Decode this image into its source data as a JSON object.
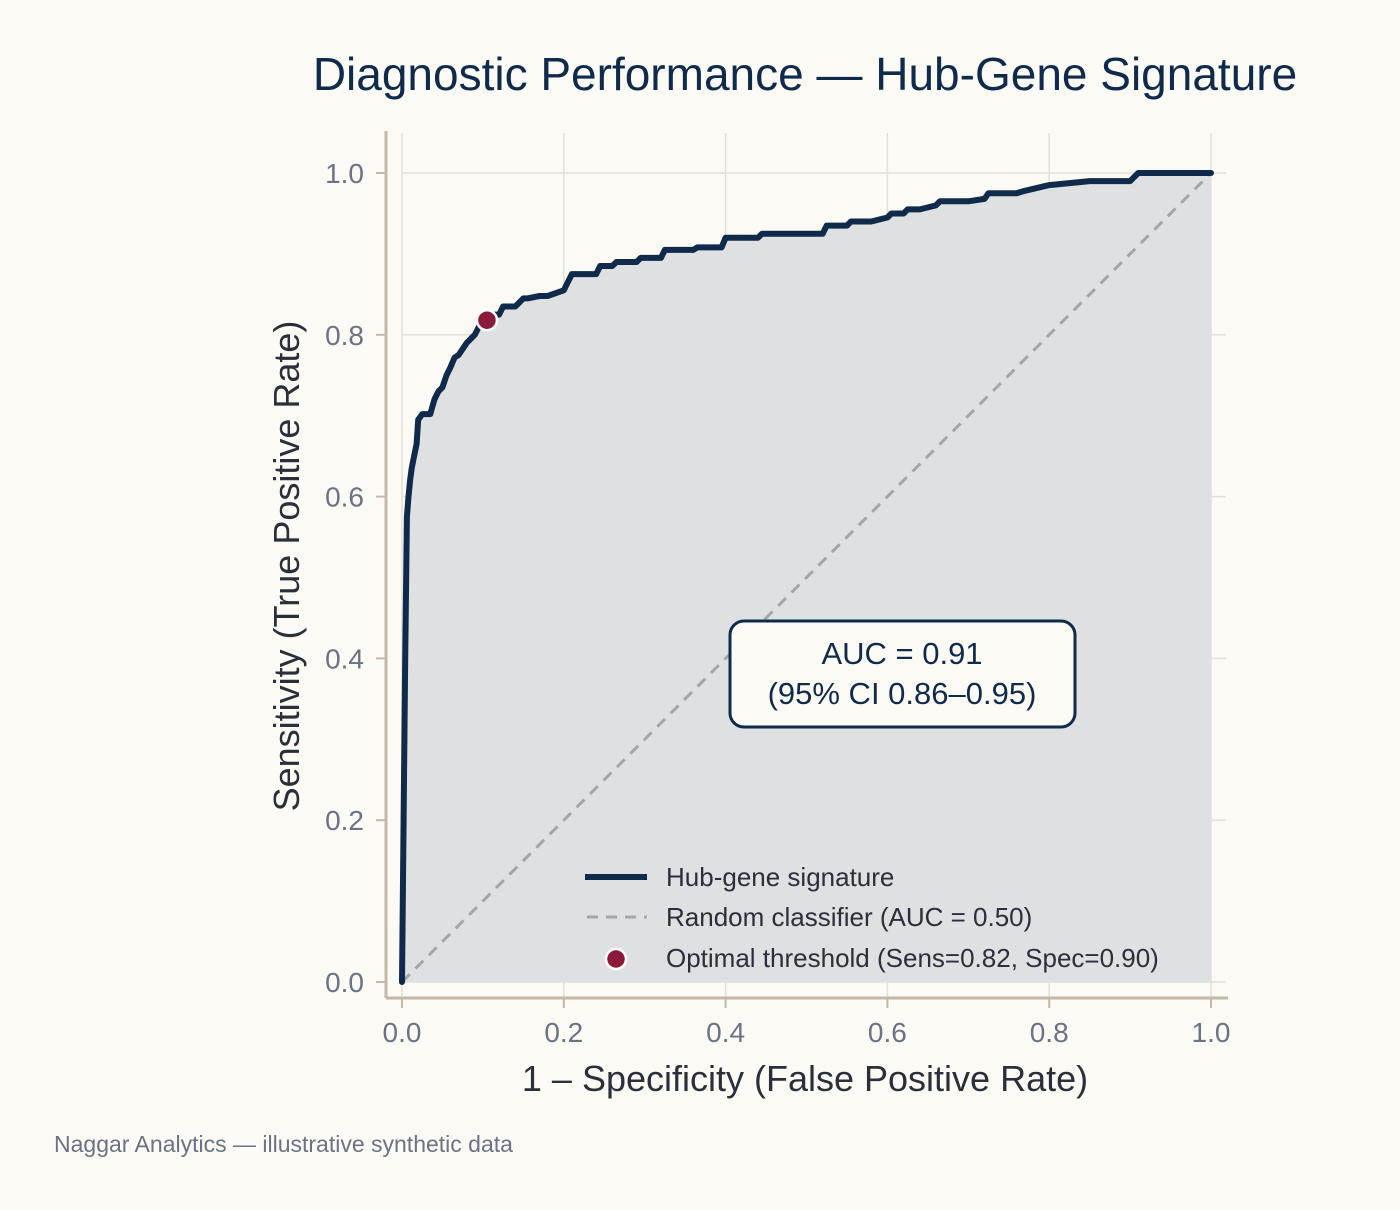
{
  "chart_data": {
    "type": "line",
    "title": "Diagnostic Performance — Hub-Gene Signature",
    "xlabel": "1 – Specificity (False Positive Rate)",
    "ylabel": "Sensitivity (True Positive Rate)",
    "xlim": [
      0,
      1
    ],
    "ylim": [
      0,
      1
    ],
    "x_ticks": [
      "0.0",
      "0.2",
      "0.4",
      "0.6",
      "0.8",
      "1.0"
    ],
    "y_ticks": [
      "0.0",
      "0.2",
      "0.4",
      "0.6",
      "0.8",
      "1.0"
    ],
    "grid": true,
    "legend_position": "bottom-right",
    "series": [
      {
        "name": "Hub-gene signature",
        "style": "solid",
        "color": "#0f2a4a",
        "x": [
          0.0,
          0.002,
          0.004,
          0.006,
          0.008,
          0.01,
          0.012,
          0.015,
          0.018,
          0.02,
          0.025,
          0.035,
          0.04,
          0.045,
          0.05,
          0.055,
          0.06,
          0.065,
          0.07,
          0.08,
          0.085,
          0.09,
          0.095,
          0.1,
          0.103,
          0.105,
          0.11,
          0.12,
          0.125,
          0.14,
          0.15,
          0.155,
          0.17,
          0.18,
          0.2,
          0.205,
          0.21,
          0.24,
          0.245,
          0.26,
          0.265,
          0.29,
          0.295,
          0.32,
          0.325,
          0.36,
          0.365,
          0.395,
          0.4,
          0.44,
          0.445,
          0.52,
          0.525,
          0.55,
          0.555,
          0.58,
          0.6,
          0.605,
          0.62,
          0.625,
          0.64,
          0.66,
          0.665,
          0.7,
          0.72,
          0.725,
          0.74,
          0.76,
          0.77,
          0.8,
          0.85,
          0.86,
          0.9,
          0.91,
          1.0
        ],
        "y": [
          0.0,
          0.2,
          0.4,
          0.575,
          0.6,
          0.62,
          0.635,
          0.65,
          0.665,
          0.695,
          0.702,
          0.702,
          0.72,
          0.73,
          0.735,
          0.75,
          0.76,
          0.772,
          0.775,
          0.79,
          0.795,
          0.8,
          0.81,
          0.818,
          0.818,
          0.82,
          0.825,
          0.825,
          0.835,
          0.835,
          0.845,
          0.845,
          0.848,
          0.848,
          0.855,
          0.865,
          0.875,
          0.875,
          0.885,
          0.885,
          0.89,
          0.89,
          0.895,
          0.895,
          0.905,
          0.905,
          0.908,
          0.908,
          0.92,
          0.92,
          0.925,
          0.925,
          0.935,
          0.935,
          0.94,
          0.94,
          0.945,
          0.95,
          0.95,
          0.955,
          0.955,
          0.96,
          0.965,
          0.965,
          0.968,
          0.975,
          0.975,
          0.975,
          0.978,
          0.985,
          0.99,
          0.99,
          0.99,
          1.0,
          1.0
        ]
      },
      {
        "name": "Random classifier (AUC = 0.50)",
        "style": "dashed",
        "color": "#a4a6ab",
        "x": [
          0,
          1
        ],
        "y": [
          0,
          1
        ]
      }
    ],
    "points": [
      {
        "name": "Optimal threshold (Sens=0.82, Spec=0.90)",
        "x": 0.105,
        "y": 0.818,
        "color": "#8b1a3a"
      }
    ],
    "annotation": {
      "line1": "AUC = 0.91",
      "line2": "(95% CI 0.86–0.95)"
    }
  },
  "footer": "Naggar Analytics — illustrative synthetic data"
}
